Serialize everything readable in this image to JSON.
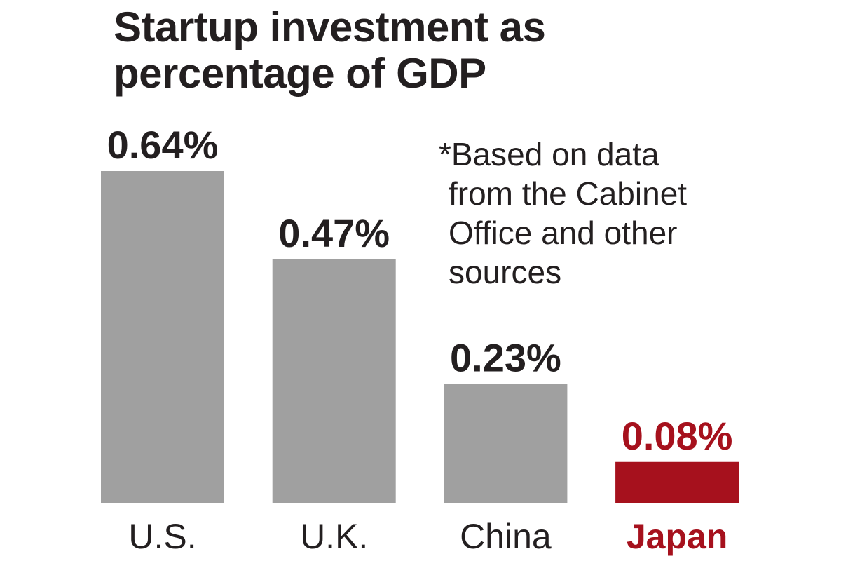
{
  "title_lines": [
    "Startup investment as",
    "percentage of GDP"
  ],
  "note_lines": [
    "*Based on data",
    "from the Cabinet",
    "Office and other",
    "sources"
  ],
  "colors": {
    "bar": "#a0a0a0",
    "highlight": "#a6111d",
    "text": "#231f20"
  },
  "chart_data": {
    "type": "bar",
    "title": "Startup investment as percentage of GDP",
    "categories": [
      "U.S.",
      "U.K.",
      "China",
      "Japan"
    ],
    "values": [
      0.64,
      0.47,
      0.23,
      0.08
    ],
    "value_labels": [
      "0.64%",
      "0.47%",
      "0.23%",
      "0.08%"
    ],
    "highlight_category": "Japan",
    "xlabel": "",
    "ylabel": "",
    "ylim": [
      0,
      0.64
    ],
    "grid": false,
    "legend": "none",
    "annotation": "*Based on data from the Cabinet Office and other sources"
  }
}
